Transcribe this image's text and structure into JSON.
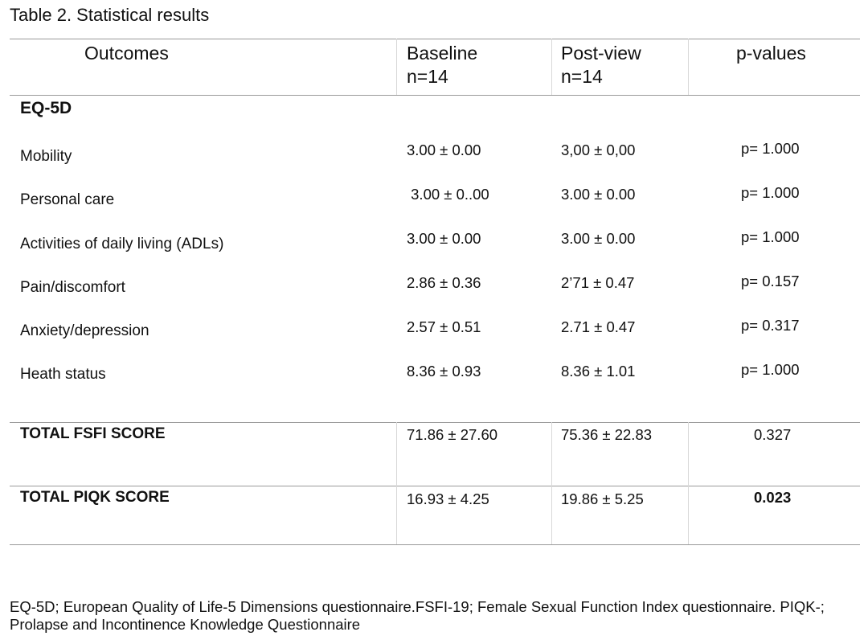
{
  "caption": "Table 2. Statistical results",
  "columns": {
    "outcomes": "Outcomes",
    "baseline_1": "Baseline",
    "baseline_2": "n=14",
    "postview_1": "Post-view",
    "postview_2": "n=14",
    "pvalues": "p-values"
  },
  "section": "EQ-5D",
  "rows": [
    {
      "label": "Mobility",
      "baseline": "3.00 ± 0.00",
      "postview": "3,00 ± 0,00",
      "p": "p= 1.000"
    },
    {
      "label": "Personal care",
      "baseline": " 3.00 ± 0..00",
      "postview": "3.00 ± 0.00",
      "p": "p= 1.000"
    },
    {
      "label": "Activities of daily living (ADLs)",
      "baseline": "3.00 ± 0.00",
      "postview": "3.00 ± 0.00",
      "p": "p= 1.000"
    },
    {
      "label": "Pain/discomfort",
      "baseline": "2.86 ± 0.36",
      "postview": "2’71 ± 0.47",
      "p": "p= 0.157"
    },
    {
      "label": "Anxiety/depression",
      "baseline": "2.57 ± 0.51",
      "postview": "2.71 ± 0.47",
      "p": "p= 0.317"
    },
    {
      "label": "Heath status",
      "baseline": "8.36 ± 0.93",
      "postview": "8.36 ± 1.01",
      "p": "p= 1.000"
    }
  ],
  "totals": [
    {
      "label": "TOTAL FSFI SCORE",
      "baseline": "71.86 ± 27.60",
      "postview": "75.36 ± 22.83",
      "p": "0.327"
    },
    {
      "label": "TOTAL PIQK SCORE",
      "baseline": "16.93 ± 4.25",
      "postview": "19.86 ± 5.25",
      "p": "0.023"
    }
  ],
  "footnote": "EQ-5D; European Quality of Life-5 Dimensions questionnaire.FSFI-19; Female Sexual Function Index questionnaire. PIQK-; Prolapse and Incontinence Knowledge Questionnaire"
}
